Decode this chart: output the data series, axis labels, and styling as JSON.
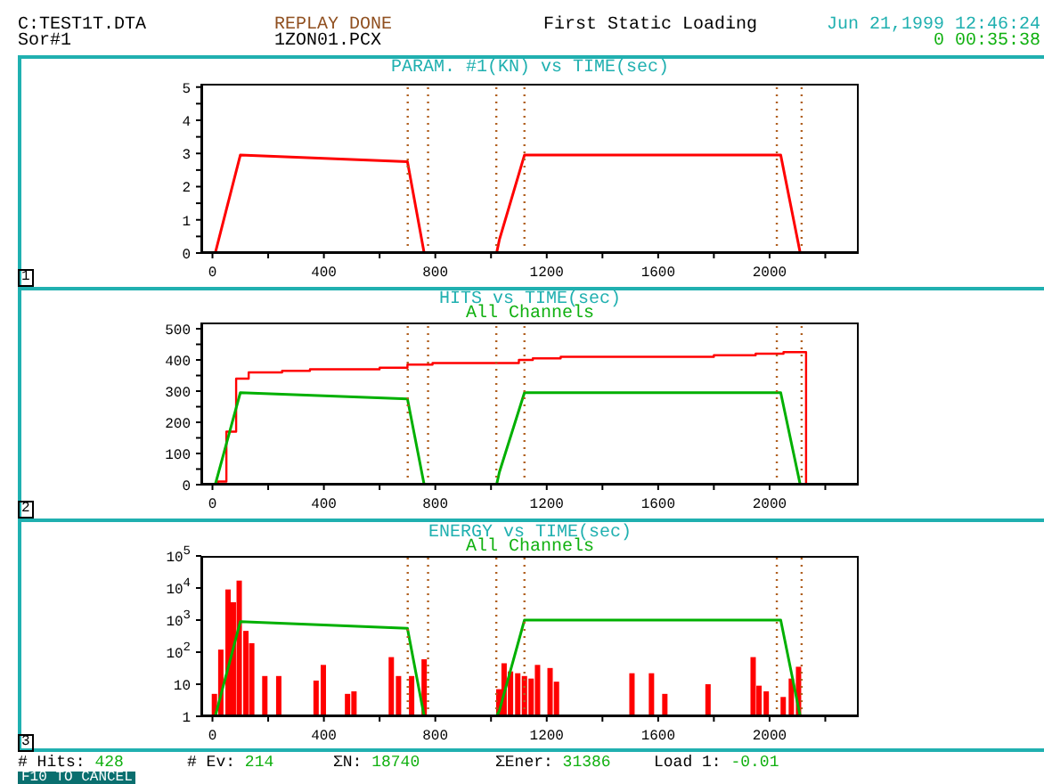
{
  "chart_data": [
    {
      "type": "line",
      "title": "PARAM. #1(KN) vs TIME(sec)",
      "marker": "none",
      "xlim": [
        -40,
        2320
      ],
      "xticks": [
        0,
        {
          "value": 200,
          "label": null
        },
        400,
        {
          "value": 600,
          "label": null
        },
        800,
        {
          "value": 1000,
          "label": null
        },
        1200,
        {
          "value": 1400,
          "label": null
        },
        1600,
        {
          "value": 1800,
          "label": null
        },
        2000,
        {
          "value": 2200,
          "label": null
        }
      ],
      "ylim": [
        0,
        5.1
      ],
      "yticks": [
        0,
        {
          "value": 0.5,
          "label": null
        },
        1,
        {
          "value": 1.5,
          "label": null
        },
        2,
        {
          "value": 2.5,
          "label": null
        },
        3,
        {
          "value": 3.5,
          "label": null
        },
        4,
        {
          "value": 4.5,
          "label": null
        },
        5
      ],
      "series": [
        {
          "color": "#ff0000",
          "x": [
            10,
            100,
            700,
            760,
            790,
            900,
            1020,
            1030,
            1120,
            2040,
            2110,
            2130
          ],
          "values": [
            0,
            2.95,
            2.75,
            0,
            0,
            null,
            0,
            0.4,
            2.95,
            2.95,
            0,
            0
          ]
        }
      ],
      "ref_lines": [
        {
          "axis": "x",
          "value": 701,
          "color": "#b06020",
          "line_style": "dotted"
        },
        {
          "axis": "x",
          "value": 774,
          "color": "#b06020",
          "line_style": "dotted"
        },
        {
          "axis": "x",
          "value": 1019,
          "color": "#b06020",
          "line_style": "dotted"
        },
        {
          "axis": "x",
          "value": 1120,
          "color": "#b06020",
          "line_style": "dotted"
        },
        {
          "axis": "x",
          "value": 2026,
          "color": "#b06020",
          "line_style": "dotted"
        },
        {
          "axis": "x",
          "value": 2115,
          "color": "#b06020",
          "line_style": "dotted"
        }
      ],
      "annotations": [
        "C:TEST1T.DTA",
        "Sor#1",
        "REPLAY DONE",
        "1ZON01.PCX",
        "First Static Loading",
        "Jun 21,1999 12:46:24",
        "0 00:35:38",
        "1"
      ]
    },
    {
      "type": "line",
      "title": "HITS vs TIME(sec)",
      "subtitle": "All Channels",
      "marker": "none",
      "xlim": [
        -40,
        2320
      ],
      "xticks": [
        0,
        {
          "value": 200,
          "label": null
        },
        400,
        {
          "value": 600,
          "label": null
        },
        800,
        {
          "value": 1000,
          "label": null
        },
        1200,
        {
          "value": 1400,
          "label": null
        },
        1600,
        {
          "value": 1800,
          "label": null
        },
        2000,
        {
          "value": 2200,
          "label": null
        }
      ],
      "ylim": [
        0,
        520
      ],
      "yticks": [
        0,
        {
          "value": 50,
          "label": null
        },
        100,
        {
          "value": 150,
          "label": null
        },
        200,
        {
          "value": 250,
          "label": null
        },
        300,
        {
          "value": 350,
          "label": null
        },
        400,
        {
          "value": 450,
          "label": null
        },
        500
      ],
      "series": [
        {
          "type": "step",
          "color": "#ff0000",
          "x": [
            0,
            20,
            50,
            85,
            130,
            250,
            350,
            600,
            700,
            790,
            1000,
            1100,
            1150,
            1250,
            1800,
            1950,
            2050,
            2130,
            2131
          ],
          "values": [
            0,
            10,
            170,
            340,
            360,
            365,
            370,
            375,
            385,
            390,
            390,
            400,
            405,
            410,
            415,
            420,
            425,
            425,
            0
          ]
        },
        {
          "color": "#00b000",
          "x": [
            10,
            100,
            700,
            760,
            790,
            900,
            1020,
            1030,
            1120,
            2040,
            2110,
            2130
          ],
          "values": [
            0,
            295,
            275,
            0,
            0,
            null,
            0,
            40,
            295,
            295,
            0,
            0
          ]
        }
      ],
      "ref_lines": [
        {
          "axis": "x",
          "value": 701,
          "color": "#b06020",
          "line_style": "dotted"
        },
        {
          "axis": "x",
          "value": 774,
          "color": "#b06020",
          "line_style": "dotted"
        },
        {
          "axis": "x",
          "value": 1019,
          "color": "#b06020",
          "line_style": "dotted"
        },
        {
          "axis": "x",
          "value": 1120,
          "color": "#b06020",
          "line_style": "dotted"
        },
        {
          "axis": "x",
          "value": 2026,
          "color": "#b06020",
          "line_style": "dotted"
        },
        {
          "axis": "x",
          "value": 2115,
          "color": "#b06020",
          "line_style": "dotted"
        }
      ],
      "annotations": [
        "2"
      ]
    },
    {
      "type": "bar",
      "title": "ENERGY vs TIME(sec)",
      "subtitle": "All Channels",
      "marker": "none",
      "log": "y",
      "xlim": [
        -40,
        2320
      ],
      "xticks": [
        0,
        {
          "value": 200,
          "label": null
        },
        400,
        {
          "value": 600,
          "label": null
        },
        800,
        {
          "value": 1000,
          "label": null
        },
        1200,
        {
          "value": 1400,
          "label": null
        },
        1600,
        {
          "value": 1800,
          "label": null
        },
        2000,
        {
          "value": 2200,
          "label": null
        }
      ],
      "ylim": [
        1,
        100000
      ],
      "yticks": [
        1,
        10,
        {
          "value": 100,
          "label": "10$^{2}$"
        },
        {
          "value": 1000,
          "label": "10$^{3}$"
        },
        {
          "value": 10000,
          "label": "10$^{4}$"
        },
        {
          "value": 100000,
          "label": "10$^{5}$"
        }
      ],
      "series": [
        {
          "color": "#ff0000",
          "x": [
            7,
            30,
            56,
            75,
            96,
            120,
            141,
            188,
            238,
            372,
            398,
            485,
            508,
            642,
            668,
            715,
            760,
            1028,
            1047,
            1070,
            1096,
            1120,
            1144,
            1167,
            1212,
            1235,
            1506,
            1576,
            1624,
            1779,
            1941,
            1962,
            1988,
            2049,
            2078,
            2104
          ],
          "values": [
            5,
            120,
            9000,
            3600,
            17000,
            460,
            190,
            18,
            18,
            13,
            40,
            5,
            6,
            70,
            18,
            18,
            60,
            7,
            45,
            25,
            22,
            18,
            15,
            40,
            32,
            12,
            22,
            22,
            5,
            10,
            70,
            9,
            6,
            4,
            15,
            35
          ]
        },
        {
          "type": "line",
          "color": "#00b000",
          "x": [
            10,
            100,
            700,
            760,
            790,
            900,
            1020,
            1030,
            1120,
            2040,
            2110,
            2130
          ],
          "values": [
            1,
            900,
            550,
            1,
            1,
            null,
            1,
            1.5,
            1000,
            1000,
            1,
            1
          ]
        }
      ],
      "ref_lines": [
        {
          "axis": "x",
          "value": 701,
          "color": "#b06020",
          "line_style": "dotted"
        },
        {
          "axis": "x",
          "value": 774,
          "color": "#b06020",
          "line_style": "dotted"
        },
        {
          "axis": "x",
          "value": 1019,
          "color": "#b06020",
          "line_style": "dotted"
        },
        {
          "axis": "x",
          "value": 1120,
          "color": "#b06020",
          "line_style": "dotted"
        },
        {
          "axis": "x",
          "value": 2026,
          "color": "#b06020",
          "line_style": "dotted"
        },
        {
          "axis": "x",
          "value": 2115,
          "color": "#b06020",
          "line_style": "dotted"
        }
      ],
      "annotations": [
        "3",
        "# Hits: 428",
        "# Ev: 214",
        "ΣN: 18740",
        "ΣEner: 31386",
        "Load 1: -0.01",
        "F10 TO CANCEL"
      ]
    }
  ]
}
